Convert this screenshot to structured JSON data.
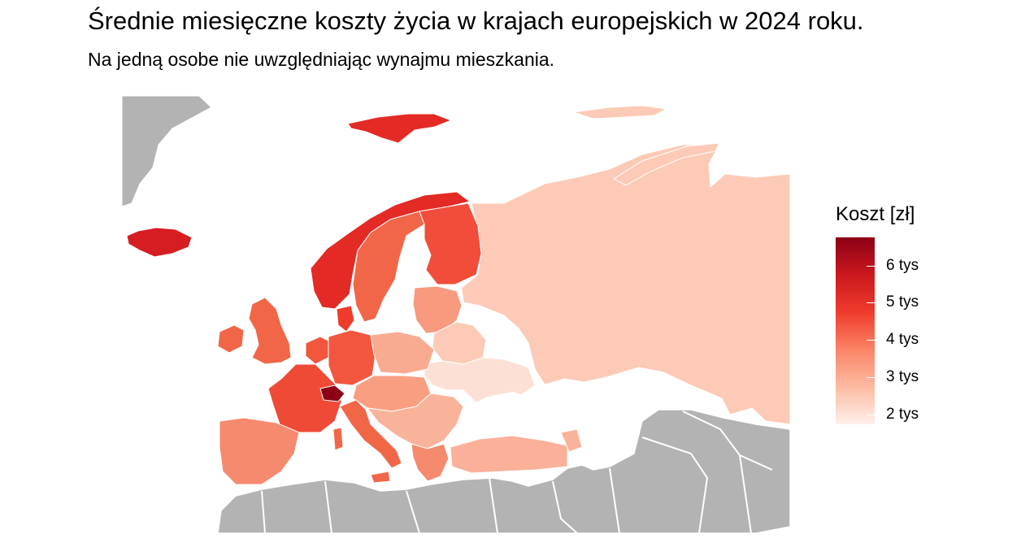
{
  "title": "Średnie miesięczne koszty życia w krajach europejskich w 2024 roku.",
  "subtitle": "Na jedną osobe nie uwzględniając wynajmu mieszkania.",
  "legend": {
    "title": "Koszt [zł]",
    "ticks": [
      "6 tys",
      "5 tys",
      "4 tys",
      "3 tys",
      "2 tys"
    ],
    "colors": {
      "low": "#fff0ec",
      "high": "#8b0015"
    }
  },
  "map_colors": {
    "no_data": "#b3b3b3",
    "border": "#ffffff",
    "russia_belarus": "#fccab6",
    "ukraine": "#fde0d5",
    "switzerland": "#8b0015",
    "iceland": "#d61d22",
    "norway": "#e32a25",
    "uk": "#f26648",
    "france": "#ef4a36",
    "spain": "#f68a6e",
    "germany": "#f2573e",
    "sweden_finland": "#f26648",
    "poland": "#f9ab92",
    "balkans": "#fab39b",
    "turkey": "#fbb09a"
  }
}
